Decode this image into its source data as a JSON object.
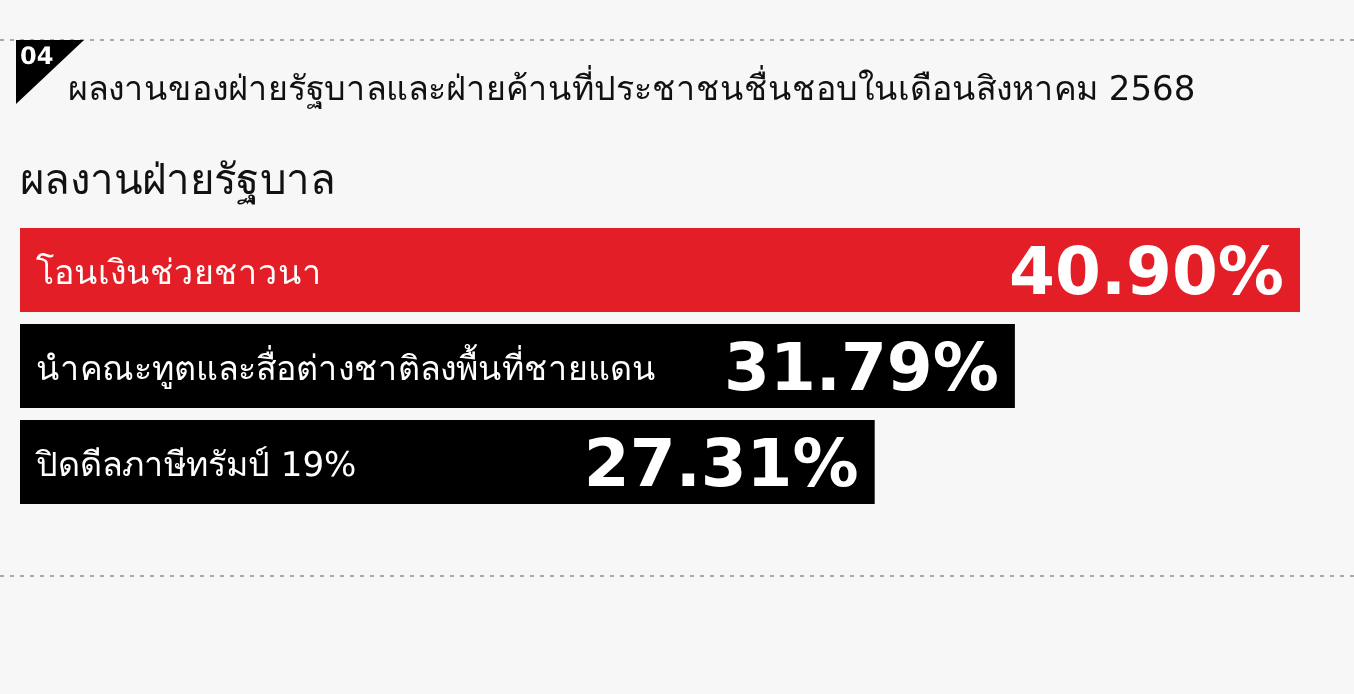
{
  "chart_data": {
    "type": "bar",
    "orientation": "horizontal",
    "title": "ผลงานของฝ่ายรัฐบาลและฝ่ายค้านที่ประชาชนชื่นชอบในเดือนสิงหาคม 2568",
    "subtitle": "ผลงานฝ่ายรัฐบาล",
    "annotations": [
      "04"
    ],
    "categories": [
      "โอนเงินช่วยชาวนา",
      "นำคณะทูตและสื่อต่างชาติลงพื้นที่ชายแดน",
      "ปิดดีลภาษีทรัมป์ 19%"
    ],
    "values": [
      40.9,
      31.79,
      27.31
    ],
    "colors": [
      "#e41e26",
      "#000000",
      "#000000"
    ],
    "value_labels": [
      "40.90%",
      "31.79%",
      "27.31%"
    ]
  }
}
